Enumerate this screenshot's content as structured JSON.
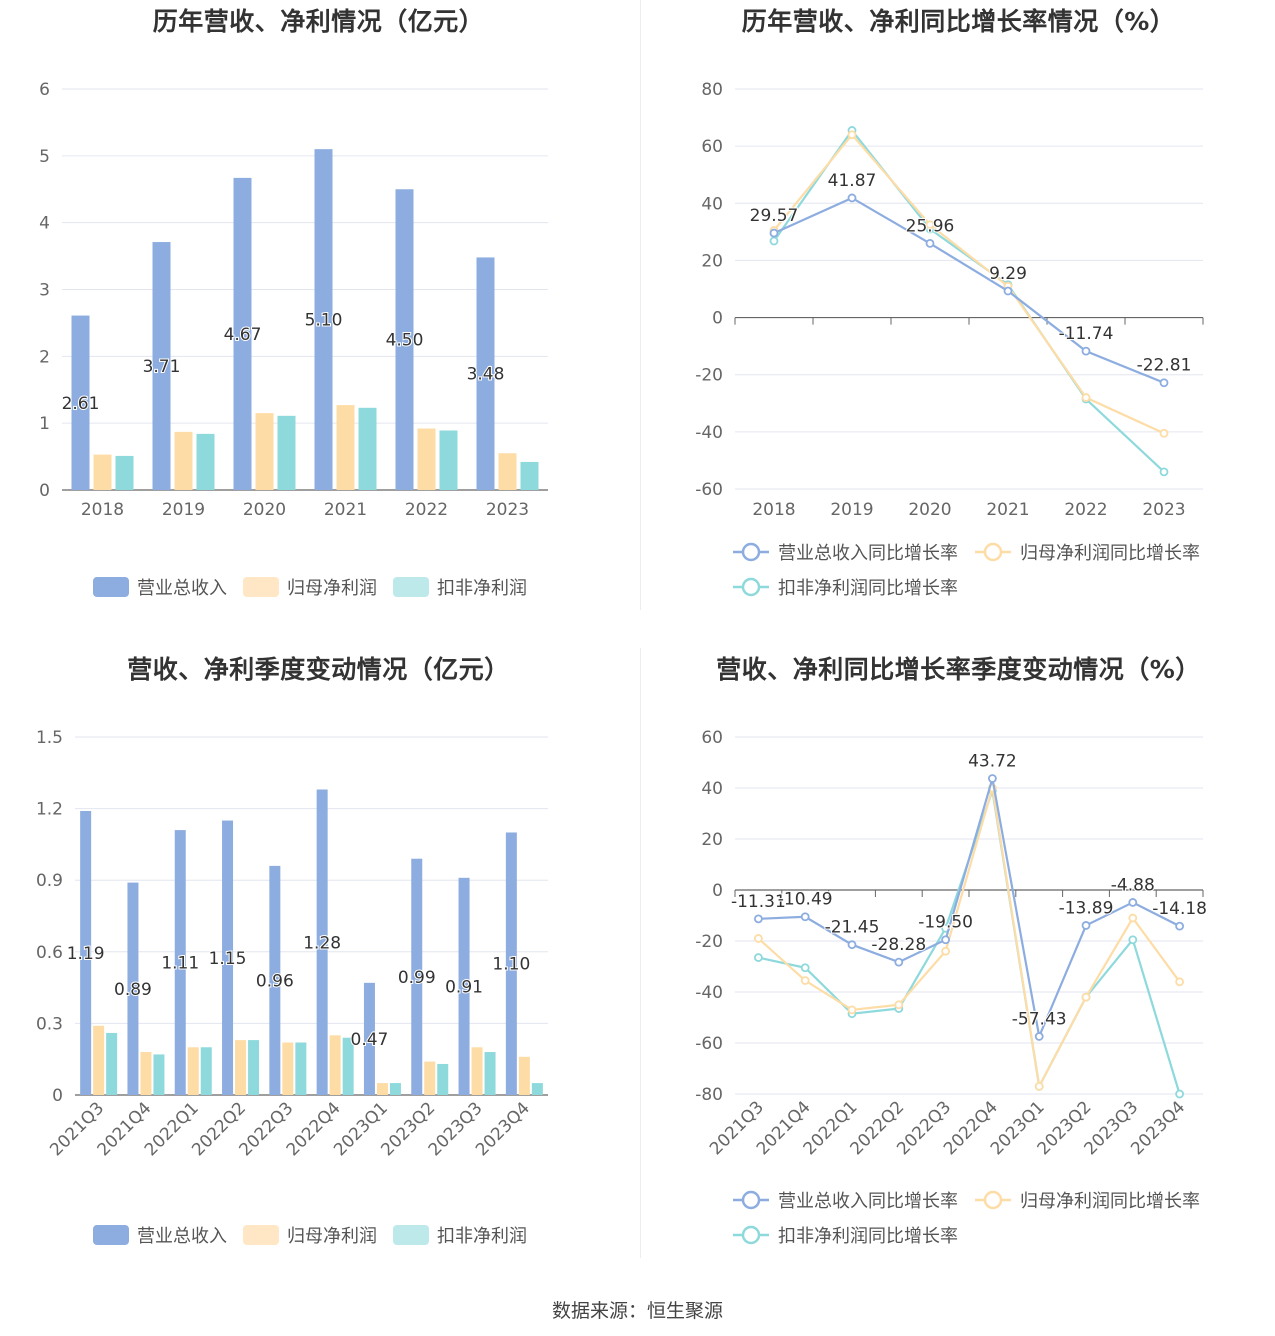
{
  "colors": {
    "revenue": "#8dade0",
    "parent_profit": "#fddca6",
    "deducted_profit": "#8ed9dc",
    "revenue_legend": "#8dade0",
    "parent_legend": "#ffe7c5",
    "deducted_legend": "#bde9ea",
    "grid": "#e3e6ef",
    "axis": "#666666"
  },
  "source": "数据来源：恒生聚源",
  "chart_data": [
    {
      "id": "annual-amount",
      "type": "bar",
      "title": "历年营收、净利情况（亿元）",
      "categories": [
        "2018",
        "2019",
        "2020",
        "2021",
        "2022",
        "2023"
      ],
      "ylim": [
        0,
        6
      ],
      "yticks": [
        0,
        1,
        2,
        3,
        4,
        5,
        6
      ],
      "series": [
        {
          "name": "营业总收入",
          "values": [
            2.61,
            3.71,
            4.67,
            5.1,
            4.5,
            3.48
          ],
          "labels": [
            "2.61",
            "3.71",
            "4.67",
            "5.10",
            "4.50",
            "3.48"
          ]
        },
        {
          "name": "归母净利润",
          "values": [
            0.53,
            0.87,
            1.15,
            1.27,
            0.92,
            0.55
          ]
        },
        {
          "name": "扣非净利润",
          "values": [
            0.51,
            0.84,
            1.11,
            1.23,
            0.89,
            0.42
          ]
        }
      ]
    },
    {
      "id": "annual-growth",
      "type": "line",
      "title": "历年营收、净利同比增长率情况（%）",
      "categories": [
        "2018",
        "2019",
        "2020",
        "2021",
        "2022",
        "2023"
      ],
      "ylim": [
        -60,
        80
      ],
      "yticks": [
        -60,
        -40,
        -20,
        0,
        20,
        40,
        60,
        80
      ],
      "series": [
        {
          "name": "营业总收入同比增长率",
          "values": [
            29.57,
            41.87,
            25.96,
            9.29,
            -11.74,
            -22.81
          ],
          "labels": [
            "29.57",
            "41.87",
            "25.96",
            "9.29",
            "-11.74",
            "-22.81"
          ]
        },
        {
          "name": "归母净利润同比增长率",
          "values": [
            30.5,
            64.0,
            32.5,
            11.0,
            -28.0,
            -40.5
          ]
        },
        {
          "name": "扣非净利润同比增长率",
          "values": [
            26.8,
            65.5,
            31.0,
            11.5,
            -28.5,
            -54.0
          ]
        }
      ]
    },
    {
      "id": "quarterly-amount",
      "type": "bar",
      "title": "营收、净利季度变动情况（亿元）",
      "categories": [
        "2021Q3",
        "2021Q4",
        "2022Q1",
        "2022Q2",
        "2022Q3",
        "2022Q4",
        "2023Q1",
        "2023Q2",
        "2023Q3",
        "2023Q4"
      ],
      "ylim": [
        0,
        1.5
      ],
      "yticks": [
        0,
        0.3,
        0.6,
        0.9,
        1.2,
        1.5
      ],
      "ytick_labels": [
        "0",
        "0.3",
        "0.6",
        "0.9",
        "1.2",
        "1.5"
      ],
      "series": [
        {
          "name": "营业总收入",
          "values": [
            1.19,
            0.89,
            1.11,
            1.15,
            0.96,
            1.28,
            0.47,
            0.99,
            0.91,
            1.1
          ],
          "labels": [
            "1.19",
            "0.89",
            "1.11",
            "1.15",
            "0.96",
            "1.28",
            "0.47",
            "0.99",
            "0.91",
            "1.10"
          ]
        },
        {
          "name": "归母净利润",
          "values": [
            0.29,
            0.18,
            0.2,
            0.23,
            0.22,
            0.25,
            0.05,
            0.14,
            0.2,
            0.16
          ]
        },
        {
          "name": "扣非净利润",
          "values": [
            0.26,
            0.17,
            0.2,
            0.23,
            0.22,
            0.24,
            0.05,
            0.13,
            0.18,
            0.05
          ]
        }
      ]
    },
    {
      "id": "quarterly-growth",
      "type": "line",
      "title": "营收、净利同比增长率季度变动情况（%）",
      "categories": [
        "2021Q3",
        "2021Q4",
        "2022Q1",
        "2022Q2",
        "2022Q3",
        "2022Q4",
        "2023Q1",
        "2023Q2",
        "2023Q3",
        "2023Q4"
      ],
      "ylim": [
        -80,
        60
      ],
      "yticks": [
        -80,
        -60,
        -40,
        -20,
        0,
        20,
        40,
        60
      ],
      "series": [
        {
          "name": "营业总收入同比增长率",
          "values": [
            -11.31,
            -10.49,
            -21.45,
            -28.28,
            -19.5,
            43.72,
            -57.43,
            -13.89,
            -4.88,
            -14.18
          ],
          "labels": [
            "-11.31",
            "-10.49",
            "-21.45",
            "-28.28",
            "-19.50",
            "43.72",
            "-57.43",
            "-13.89",
            "-4.88",
            "-14.18"
          ]
        },
        {
          "name": "归母净利润同比增长率",
          "values": [
            -19.0,
            -35.5,
            -47.0,
            -45.0,
            -24.0,
            40.0,
            -77.0,
            -42.0,
            -11.0,
            -36.0
          ]
        },
        {
          "name": "扣非净利润同比增长率",
          "values": [
            -26.5,
            -30.5,
            -48.5,
            -46.5,
            -15.0,
            39.0,
            -77.0,
            -42.0,
            -19.5,
            -80.0
          ]
        }
      ]
    }
  ]
}
